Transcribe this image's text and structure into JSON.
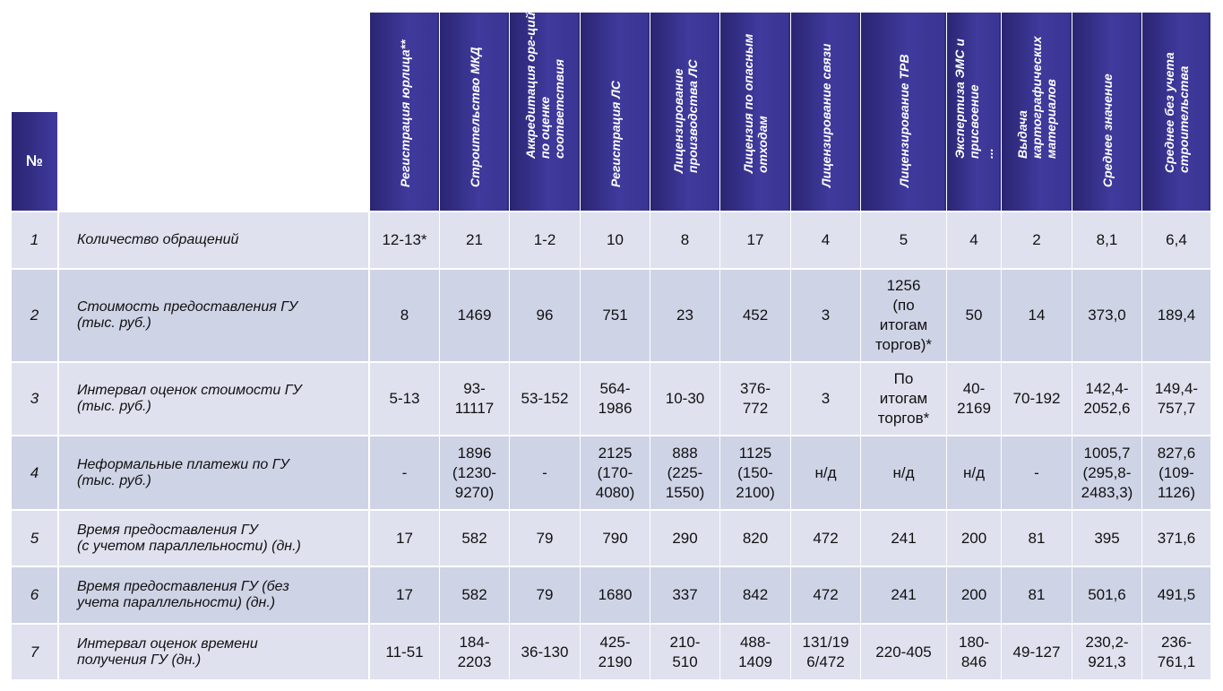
{
  "table": {
    "num_header": "№",
    "columns": [
      "Регистрация юрлица**",
      "Строительство МКД",
      "Аккредитация орг-ций\nпо оценке\nсоответствия",
      "Регистрация ЛС",
      "Лицензирование\nпроизводства ЛС",
      "Лицензия по опасным\nотходам",
      "Лицензирование связи",
      "Лицензирование ТРВ",
      "Экспертиза ЭМС и\nприсвоение\n...",
      "Выдача\nкартографических\nматериалов",
      "Среднее значение",
      "Среднее без учета\nстроительства"
    ],
    "rows": [
      {
        "num": "1",
        "label": "Количество обращений",
        "values": [
          "12-13*",
          "21",
          "1-2",
          "10",
          "8",
          "17",
          "4",
          "5",
          "4",
          "2",
          "8,1",
          "6,4"
        ]
      },
      {
        "num": "2",
        "label": "Стоимость предоставления ГУ\n(тыс. руб.)",
        "values": [
          "8",
          "1469",
          "96",
          "751",
          "23",
          "452",
          "3",
          "1256\n(по\nитогам\nторгов)*",
          "50",
          "14",
          "373,0",
          "189,4"
        ]
      },
      {
        "num": "3",
        "label": "Интервал оценок стоимости ГУ\n(тыс. руб.)",
        "values": [
          "5-13",
          "93-\n11117",
          "53-152",
          "564-\n1986",
          "10-30",
          "376-\n772",
          "3",
          "По\nитогам\nторгов*",
          "40-\n2169",
          "70-192",
          "142,4-\n2052,6",
          "149,4-\n757,7"
        ]
      },
      {
        "num": "4",
        "label": "Неформальные платежи по ГУ\n(тыс. руб.)",
        "values": [
          "-",
          "1896\n(1230-\n9270)",
          "-",
          "2125\n(170-\n4080)",
          "888\n(225-\n1550)",
          "1125\n(150-\n2100)",
          "н/д",
          "н/д",
          "н/д",
          "-",
          "1005,7\n(295,8-\n2483,3)",
          "827,6\n(109-\n1126)"
        ]
      },
      {
        "num": "5",
        "label": "Время предоставления ГУ\n(с учетом параллельности) (дн.)",
        "values": [
          "17",
          "582",
          "79",
          "790",
          "290",
          "820",
          "472",
          "241",
          "200",
          "81",
          "395",
          "371,6"
        ]
      },
      {
        "num": "6",
        "label": "Время предоставления ГУ (без\nучета параллельности) (дн.)",
        "values": [
          "17",
          "582",
          "79",
          "1680",
          "337",
          "842",
          "472",
          "241",
          "200",
          "81",
          "501,6",
          "491,5"
        ]
      },
      {
        "num": "7",
        "label": "Интервал оценок времени\nполучения ГУ (дн.)",
        "values": [
          "11-51",
          "184-\n2203",
          "36-130",
          "425-\n2190",
          "210-\n510",
          "488-\n1409",
          "131/19\n6/472",
          "220-405",
          "180-\n846",
          "49-127",
          "230,2-\n921,3",
          "236-\n761,1"
        ]
      }
    ]
  }
}
